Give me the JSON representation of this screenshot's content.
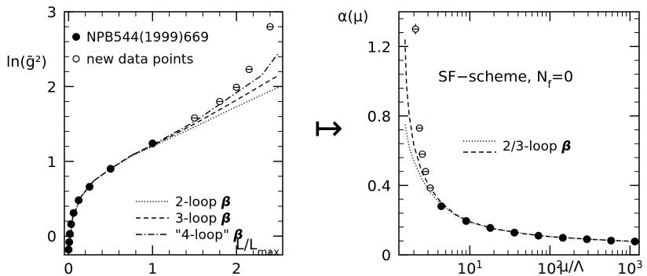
{
  "arrow_symbol": "↦",
  "chart_data": [
    {
      "type": "scatter",
      "ylabel": "ln(ḡ²)",
      "xlabel": "L/L",
      "xlabel_sub": "max",
      "xlim": [
        -0.05,
        2.55
      ],
      "ylim": [
        -0.25,
        3.0
      ],
      "x_ticks": [
        0,
        1,
        2
      ],
      "y_ticks": [
        0,
        1,
        2,
        3
      ],
      "x_tick_labels": [
        "0",
        "1",
        "2"
      ],
      "y_tick_labels": [
        "0",
        "1",
        "2",
        "3"
      ],
      "point_legend": [
        {
          "marker": "filled",
          "label": "NPB544(1999)669"
        },
        {
          "marker": "open",
          "label": "new data points"
        }
      ],
      "line_legend": [
        {
          "style": "dotted",
          "label": "2-loop",
          "symbol": "β"
        },
        {
          "style": "dashed",
          "label": "3-loop",
          "symbol": "β"
        },
        {
          "style": "dashdot",
          "label": "\"4-loop\"",
          "symbol": "β"
        }
      ],
      "series": [
        {
          "marker": "filled",
          "points": [
            [
              0.0,
              -0.18
            ],
            [
              0.008,
              -0.08
            ],
            [
              0.015,
              0.03
            ],
            [
              0.03,
              0.16
            ],
            [
              0.06,
              0.31
            ],
            [
              0.12,
              0.48
            ],
            [
              0.25,
              0.66
            ],
            [
              0.5,
              0.9
            ],
            [
              1.0,
              1.24
            ]
          ]
        },
        {
          "marker": "open",
          "points": [
            [
              1.5,
              1.58
            ],
            [
              1.8,
              1.8
            ],
            [
              2.0,
              1.99
            ],
            [
              2.15,
              2.23
            ],
            [
              2.4,
              2.8
            ]
          ],
          "errors": [
            0.03,
            0.03,
            0.03,
            0.04,
            0.05
          ]
        },
        {
          "style": "dotted",
          "points": [
            [
              0.0,
              -0.2
            ],
            [
              0.05,
              0.26
            ],
            [
              0.15,
              0.53
            ],
            [
              0.3,
              0.74
            ],
            [
              0.5,
              0.9
            ],
            [
              0.75,
              1.07
            ],
            [
              1.0,
              1.2
            ],
            [
              1.5,
              1.46
            ],
            [
              2.0,
              1.73
            ],
            [
              2.5,
              1.99
            ]
          ]
        },
        {
          "style": "dashed",
          "points": [
            [
              0.0,
              -0.2
            ],
            [
              0.05,
              0.26
            ],
            [
              0.15,
              0.53
            ],
            [
              0.3,
              0.74
            ],
            [
              0.5,
              0.9
            ],
            [
              0.75,
              1.08
            ],
            [
              1.0,
              1.21
            ],
            [
              1.5,
              1.5
            ],
            [
              2.0,
              1.82
            ],
            [
              2.5,
              2.15
            ]
          ]
        },
        {
          "style": "dashdot",
          "points": [
            [
              0.0,
              -0.2
            ],
            [
              0.05,
              0.26
            ],
            [
              0.15,
              0.53
            ],
            [
              0.3,
              0.74
            ],
            [
              0.5,
              0.9
            ],
            [
              0.75,
              1.08
            ],
            [
              1.0,
              1.22
            ],
            [
              1.5,
              1.53
            ],
            [
              2.0,
              1.92
            ],
            [
              2.3,
              2.15
            ],
            [
              2.5,
              2.45
            ]
          ]
        }
      ]
    },
    {
      "type": "scatter",
      "ylabel": "α(μ)",
      "xlabel": "μ/Λ",
      "x_scale": "log",
      "xlim": [
        1.3,
        1300
      ],
      "ylim": [
        0,
        1.4
      ],
      "x_ticks": [
        10,
        100,
        1000
      ],
      "x_tick_bases": [
        "10",
        "10",
        "10"
      ],
      "x_tick_exps": [
        "1",
        "2",
        "3"
      ],
      "y_ticks": [
        0,
        0.4,
        0.8,
        1.2
      ],
      "y_tick_labels": [
        "0",
        "0.4",
        "0.8",
        "1.2"
      ],
      "annotation_main": "SF−scheme, N",
      "annotation_sub": "f",
      "annotation_tail": "=0",
      "line_legend": [
        {
          "style": "dotted",
          "label": "2/3-loop",
          "symbol": "β",
          "shared": true
        },
        {
          "style": "dashed"
        }
      ],
      "series": [
        {
          "marker": "filled",
          "points": [
            [
              4.4,
              0.28
            ],
            [
              9,
              0.195
            ],
            [
              18,
              0.155
            ],
            [
              36,
              0.128
            ],
            [
              72,
              0.11
            ],
            [
              145,
              0.098
            ],
            [
              290,
              0.09
            ],
            [
              580,
              0.082
            ],
            [
              1150,
              0.077
            ]
          ]
        },
        {
          "marker": "open",
          "points": [
            [
              2.1,
              1.3
            ],
            [
              2.35,
              0.73
            ],
            [
              2.55,
              0.58
            ],
            [
              2.8,
              0.48
            ],
            [
              3.2,
              0.385
            ]
          ],
          "errors": [
            0.03,
            0.015,
            0.012,
            0.01,
            0.01
          ]
        },
        {
          "style": "dashed",
          "points": [
            [
              1.55,
              1.24
            ],
            [
              1.62,
              0.98
            ],
            [
              1.75,
              0.8
            ],
            [
              2.0,
              0.63
            ],
            [
              2.5,
              0.48
            ],
            [
              3.2,
              0.385
            ],
            [
              4.4,
              0.3
            ],
            [
              6.5,
              0.235
            ],
            [
              10,
              0.19
            ],
            [
              20,
              0.15
            ],
            [
              50,
              0.12
            ],
            [
              100,
              0.105
            ],
            [
              300,
              0.09
            ],
            [
              1000,
              0.078
            ],
            [
              1300,
              0.076
            ]
          ]
        },
        {
          "style": "dotted",
          "points": [
            [
              1.55,
              0.75
            ],
            [
              1.75,
              0.62
            ],
            [
              2.0,
              0.54
            ],
            [
              2.5,
              0.44
            ],
            [
              3.2,
              0.36
            ],
            [
              4.4,
              0.29
            ],
            [
              6.5,
              0.23
            ],
            [
              10,
              0.188
            ],
            [
              20,
              0.15
            ],
            [
              50,
              0.12
            ],
            [
              100,
              0.105
            ],
            [
              300,
              0.09
            ],
            [
              1000,
              0.078
            ],
            [
              1300,
              0.076
            ]
          ]
        }
      ]
    }
  ]
}
